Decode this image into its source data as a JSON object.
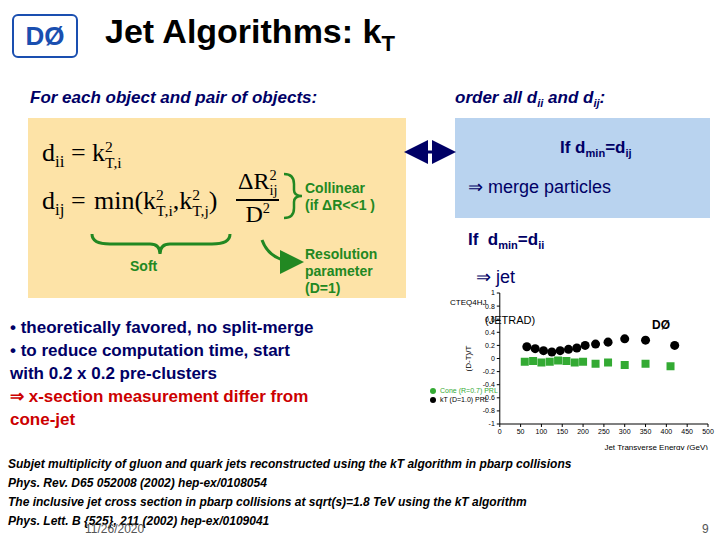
{
  "logo": "DØ",
  "title": [
    {
      "t": "Jet Algorithms: k"
    },
    {
      "t": "T",
      "s": "sub"
    }
  ],
  "left_heading": "For each object and pair of objects:",
  "right_heading": [
    {
      "t": "order all d"
    },
    {
      "t": "ii",
      "s": "sub"
    },
    {
      "t": " and d"
    },
    {
      "t": "ij",
      "s": "sub"
    },
    {
      "t": ":"
    }
  ],
  "formulas": {
    "dii": [
      {
        "t": "d"
      },
      {
        "t": "ii",
        "s": "sub"
      },
      {
        "t": " = "
      },
      {
        "t": "k",
        "sup": "2",
        "sub": "T,i"
      }
    ],
    "dij_lhs": [
      {
        "t": "d"
      },
      {
        "t": "ij",
        "s": "sub"
      },
      {
        "t": " = "
      }
    ],
    "dij_min": [
      {
        "t": "min(k"
      },
      {
        "t": "",
        "sup": "2",
        "sub": "T,i"
      },
      {
        "t": ",k"
      },
      {
        "t": "",
        "sup": "2",
        "sub": "T,j"
      },
      {
        "t": ")"
      }
    ],
    "frac_num": [
      {
        "t": "ΔR",
        "sup": "2",
        "sub": "ij"
      }
    ],
    "frac_den": [
      {
        "t": "D",
        "sup": "2"
      }
    ]
  },
  "annotations": {
    "collinear": [
      "Collinear",
      "(if ΔR<<1 )"
    ],
    "soft": "Soft",
    "resolution": [
      "Resolution",
      "parameter",
      "(D=1)"
    ]
  },
  "merge_box": {
    "condition": [
      {
        "t": "If d"
      },
      {
        "t": "min",
        "s": "sub"
      },
      {
        "t": "=d"
      },
      {
        "t": "ij",
        "s": "sub"
      }
    ],
    "result": "⇒ merge particles"
  },
  "jet_rule": {
    "condition": [
      {
        "t": "If  d"
      },
      {
        "t": "min",
        "s": "sub"
      },
      {
        "t": "=d"
      },
      {
        "t": "ii",
        "s": "sub"
      }
    ],
    "result": "⇒ jet"
  },
  "bullets": [
    "• theoretically favored, no split-merge",
    "• to reduce computation time, start",
    "with 0.2 x 0.2 pre-clusters"
  ],
  "conclusion": [
    "⇒ x-section measurement differ from",
    "cone-jet"
  ],
  "references": [
    "Subjet multiplicity of gluon and quark jets reconstructed using the kT algorithm in pbarp collisions",
    "Phys. Rev. D65 052008 (2002) hep-ex/0108054",
    "The inclusive jet cross section in pbarp collisions at sqrt(s)=1.8 TeV using the kT algorithm",
    "Phys. Lett. B {525}, 211 (2002) hep-ex/0109041"
  ],
  "date": "11/26/2020",
  "page": "9",
  "chart_data": {
    "type": "scatter",
    "x_label": "Jet Transverse Energy (GeV)",
    "y_label": "(D-T)/T",
    "xlim": [
      0,
      500
    ],
    "xticks": [
      0,
      50,
      100,
      150,
      200,
      250,
      300,
      350,
      400,
      450,
      500
    ],
    "ylim": [
      -1,
      1
    ],
    "yticks": [
      -1,
      -0.8,
      -0.6,
      -0.4,
      -0.2,
      0,
      0.2,
      0.4,
      0.6,
      0.8,
      1
    ],
    "grid": false,
    "legend": "lower left",
    "annotations": [
      "CTEQ4HJ",
      "(JETRAD)",
      "DØ"
    ],
    "series": [
      {
        "name": "kT (D=1.0) PRL",
        "color": "#000000",
        "marker": "circle",
        "x": [
          65,
          85,
          105,
          125,
          145,
          165,
          185,
          205,
          230,
          260,
          300,
          350,
          420
        ],
        "values": [
          0.18,
          0.15,
          0.12,
          0.1,
          0.12,
          0.14,
          0.16,
          0.2,
          0.22,
          0.25,
          0.3,
          0.28,
          0.2
        ]
      },
      {
        "name": "Cone (R=0.7) PRL",
        "color": "#33aa33",
        "marker": "square",
        "x": [
          60,
          80,
          100,
          120,
          140,
          160,
          180,
          200,
          230,
          260,
          300,
          350,
          410
        ],
        "values": [
          -0.05,
          -0.04,
          -0.06,
          -0.05,
          -0.03,
          -0.04,
          -0.06,
          -0.05,
          -0.08,
          -0.06,
          -0.1,
          -0.08,
          -0.12
        ]
      }
    ]
  }
}
